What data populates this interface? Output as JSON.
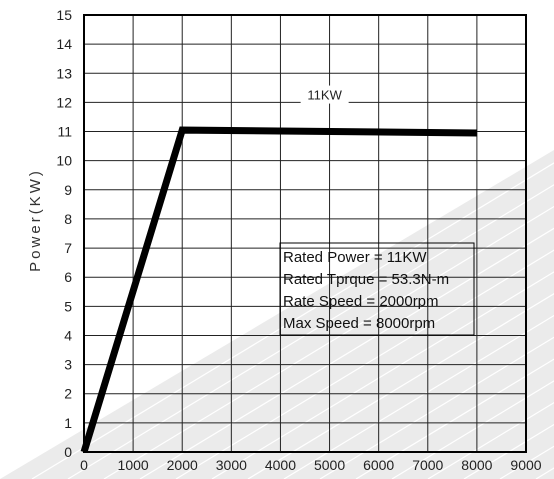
{
  "chart_data": {
    "type": "line",
    "title": "",
    "xlabel": "",
    "ylabel": "Power(KW)",
    "xlim": [
      0,
      9000
    ],
    "ylim": [
      0,
      15
    ],
    "x_ticks": [
      "0",
      "1000",
      "2000",
      "3000",
      "4000",
      "5000",
      "6000",
      "7000",
      "8000",
      "9000"
    ],
    "y_ticks": [
      "0",
      "1",
      "2",
      "3",
      "4",
      "5",
      "6",
      "7",
      "8",
      "9",
      "10",
      "11",
      "12",
      "13",
      "14",
      "15"
    ],
    "grid": true,
    "series": [
      {
        "x": [
          0,
          2000,
          8000
        ],
        "y": [
          0,
          11.05,
          10.95
        ],
        "color": "#000000"
      }
    ],
    "annotations": [
      {
        "text": "11KW",
        "x": 4900,
        "y": 12.2
      }
    ],
    "info_box": {
      "lines": [
        "Rated Power = 11KW",
        "Rated Tprque = 53.3N-m",
        "Rate Speed = 2000rpm",
        "Max Speed = 8000rpm"
      ]
    }
  }
}
